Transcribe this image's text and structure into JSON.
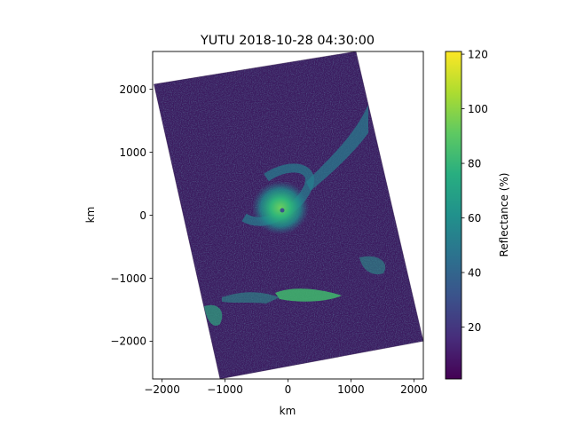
{
  "chart_data": {
    "type": "heatmap",
    "title": "YUTU 2018-10-28 04:30:00",
    "xlabel": "km",
    "ylabel": "km",
    "xlim": [
      -2150,
      2150
    ],
    "ylim": [
      -2600,
      2600
    ],
    "x_ticks": [
      {
        "value": -2000,
        "label": "−2000"
      },
      {
        "value": -1000,
        "label": "−1000"
      },
      {
        "value": 0,
        "label": "0"
      },
      {
        "value": 1000,
        "label": "1000"
      },
      {
        "value": 2000,
        "label": "2000"
      }
    ],
    "y_ticks": [
      {
        "value": 2000,
        "label": "2000"
      },
      {
        "value": 1000,
        "label": "1000"
      },
      {
        "value": 0,
        "label": "0"
      },
      {
        "value": -1000,
        "label": "−1000"
      },
      {
        "value": -2000,
        "label": "−2000"
      }
    ],
    "swath_corners_km": {
      "top_left": [
        -2130,
        2080
      ],
      "top_right": [
        1080,
        2600
      ],
      "bottom_right": [
        2150,
        -2000
      ],
      "bottom_left": [
        -1080,
        -2600
      ]
    },
    "storm_center_km": [
      -70,
      60
    ],
    "colorbar": {
      "label": "Reflectance (%)",
      "colormap": "viridis",
      "range": [
        1,
        121
      ],
      "ticks": [
        {
          "value": 20,
          "label": "20"
        },
        {
          "value": 40,
          "label": "40"
        },
        {
          "value": 60,
          "label": "60"
        },
        {
          "value": 80,
          "label": "80"
        },
        {
          "value": 100,
          "label": "100"
        },
        {
          "value": 120,
          "label": "120"
        }
      ]
    },
    "colors": {
      "background_reflectance": "#3b1b5f",
      "low": "#440154",
      "mid": "#21918c",
      "high": "#fde725"
    }
  }
}
